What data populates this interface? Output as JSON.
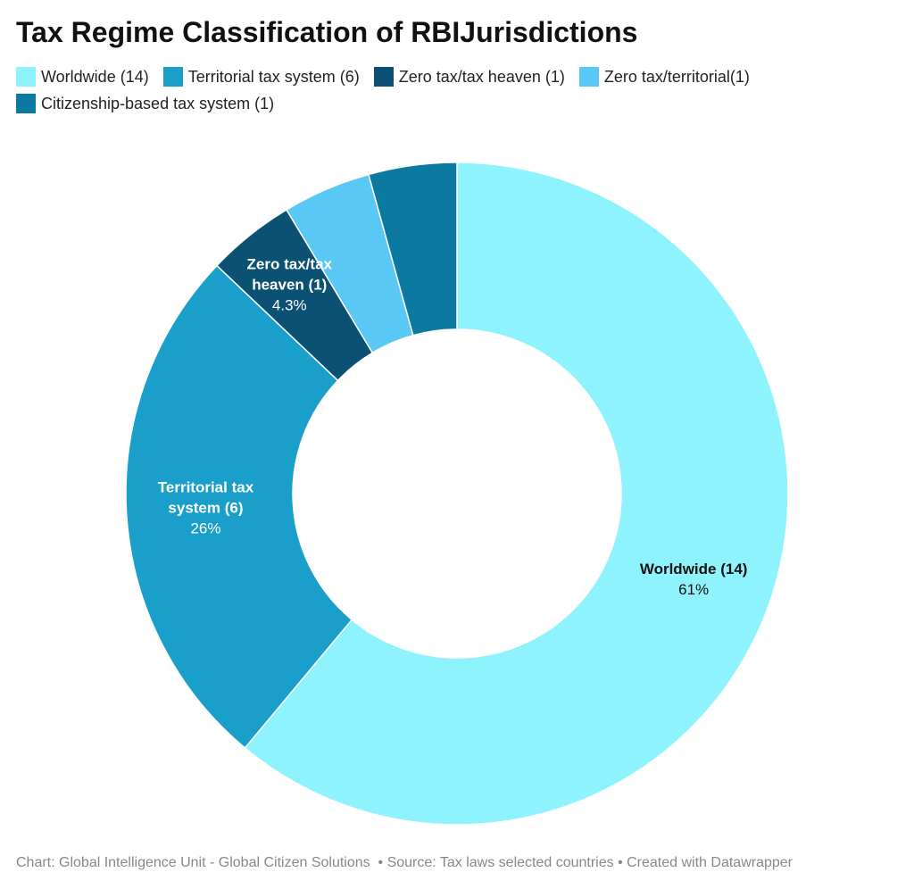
{
  "chart_data": {
    "type": "donut",
    "title": "Tax Regime Classification of RBIJurisdictions",
    "categories": [
      "Worldwide (14)",
      "Territorial tax system (6)",
      "Zero tax/tax heaven (1)",
      "Zero tax/territorial(1)",
      "Citizenship-based tax system (1)"
    ],
    "values": [
      61,
      26,
      4.3,
      4.3,
      4.3
    ],
    "value_labels": [
      "61%",
      "26%",
      "4.3%",
      null,
      null
    ],
    "colors": [
      "#8ef3fd",
      "#1a9fcb",
      "#0b5173",
      "#5ac8f5",
      "#0b79a0"
    ],
    "caption": "Chart: Global Intelligence Unit - Global Citizen Solutions  • Source: Tax laws selected countries • Created with Datawrapper"
  }
}
